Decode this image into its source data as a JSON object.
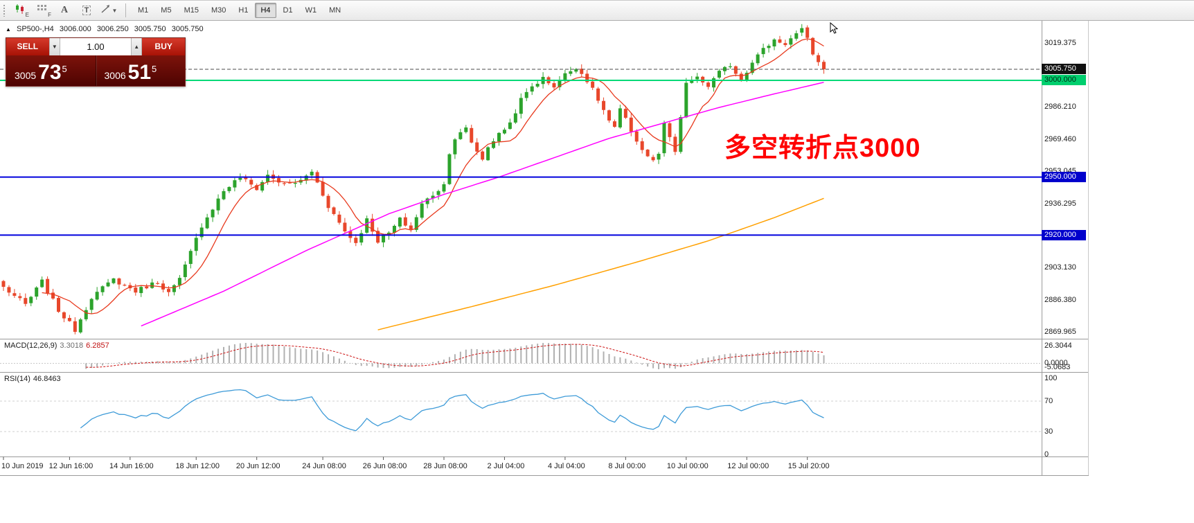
{
  "toolbar": {
    "tools": [
      {
        "id": "chart-objects",
        "label": "E"
      },
      {
        "id": "grid",
        "label": "F"
      },
      {
        "id": "text-label",
        "label": "A"
      },
      {
        "id": "text-box",
        "label": "T"
      },
      {
        "id": "draw-tools",
        "label": "",
        "dropdown": true
      }
    ],
    "timeframes": [
      {
        "label": "M1",
        "active": false
      },
      {
        "label": "M5",
        "active": false
      },
      {
        "label": "M15",
        "active": false
      },
      {
        "label": "M30",
        "active": false
      },
      {
        "label": "H1",
        "active": false
      },
      {
        "label": "H4",
        "active": true
      },
      {
        "label": "D1",
        "active": false
      },
      {
        "label": "W1",
        "active": false
      },
      {
        "label": "MN",
        "active": false
      }
    ]
  },
  "chart_header": {
    "collapse": "▲",
    "symbol_period": "SP500-,H4",
    "open": "3006.000",
    "high": "3006.250",
    "low": "3005.750",
    "close": "3005.750"
  },
  "trade_panel": {
    "sell_label": "SELL",
    "buy_label": "BUY",
    "volume": "1.00",
    "sell_price": {
      "prefix": "3005",
      "main": "73",
      "sup": "5"
    },
    "buy_price": {
      "prefix": "3006",
      "main": "51",
      "sup": "5"
    }
  },
  "annotation": {
    "text": "多空转折点3000",
    "color": "#ff0000"
  },
  "price_axis": {
    "labels": [
      "3019.375",
      "2986.210",
      "2969.460",
      "2953.045",
      "2936.295",
      "2903.130",
      "2886.380",
      "2869.965"
    ],
    "tags": [
      {
        "text": "3005.750",
        "price": 3005.75,
        "bg": "#111111",
        "fg": "#ffffff"
      },
      {
        "text": "3000.000",
        "price": 3000.0,
        "bg": "#00cf6e",
        "fg": "#002b14"
      },
      {
        "text": "2950.000",
        "price": 2950.0,
        "bg": "#0000cc",
        "fg": "#ffffff"
      },
      {
        "text": "2920.000",
        "price": 2920.0,
        "bg": "#0000cc",
        "fg": "#ffffff"
      }
    ]
  },
  "indicators": {
    "macd": {
      "name": "MACD(12,26,9)",
      "value_main": "3.3018",
      "value_signal": "6.2857",
      "axis_top": "26.3044",
      "axis_zero": "0.0000",
      "axis_bottom": "-5.0683"
    },
    "rsi": {
      "name": "RSI(14)",
      "value": "46.8463",
      "axis": [
        "100",
        "70",
        "30",
        "0"
      ],
      "levels": [
        70,
        30
      ]
    }
  },
  "time_axis": [
    {
      "text": "10 Jun 2019",
      "idx": 0
    },
    {
      "text": "12 Jun 16:00",
      "idx": 12
    },
    {
      "text": "14 Jun 16:00",
      "idx": 23
    },
    {
      "text": "18 Jun 12:00",
      "idx": 35
    },
    {
      "text": "20 Jun 12:00",
      "idx": 46
    },
    {
      "text": "24 Jun 08:00",
      "idx": 58
    },
    {
      "text": "26 Jun 08:00",
      "idx": 69
    },
    {
      "text": "28 Jun 08:00",
      "idx": 80
    },
    {
      "text": "2 Jul 04:00",
      "idx": 91
    },
    {
      "text": "4 Jul 04:00",
      "idx": 102
    },
    {
      "text": "8 Jul 00:00",
      "idx": 113
    },
    {
      "text": "10 Jul 00:00",
      "idx": 124
    },
    {
      "text": "12 Jul 00:00",
      "idx": 135
    },
    {
      "text": "15 Jul 20:00",
      "idx": 146
    }
  ],
  "chart_data": {
    "type": "candlestick",
    "symbol": "SP500-",
    "timeframe": "H4",
    "last_ohlc": {
      "open": 3006.0,
      "high": 3006.25,
      "low": 3005.75,
      "close": 3005.75
    },
    "visible_price_range": [
      2866.4,
      3030.8
    ],
    "candle_count": 150,
    "close_anchors": [
      [
        0,
        2893
      ],
      [
        4,
        2884
      ],
      [
        7,
        2896
      ],
      [
        10,
        2881
      ],
      [
        13,
        2871
      ],
      [
        16,
        2888
      ],
      [
        20,
        2897
      ],
      [
        24,
        2891
      ],
      [
        28,
        2896
      ],
      [
        30,
        2890
      ],
      [
        32,
        2897
      ],
      [
        36,
        2925
      ],
      [
        40,
        2943
      ],
      [
        43,
        2950
      ],
      [
        46,
        2944
      ],
      [
        48,
        2951
      ],
      [
        51,
        2946
      ],
      [
        54,
        2948
      ],
      [
        56,
        2953
      ],
      [
        59,
        2935
      ],
      [
        62,
        2922
      ],
      [
        64,
        2916
      ],
      [
        66,
        2928
      ],
      [
        68,
        2917
      ],
      [
        70,
        2921
      ],
      [
        72,
        2928
      ],
      [
        74,
        2923
      ],
      [
        76,
        2936
      ],
      [
        78,
        2941
      ],
      [
        80,
        2946
      ],
      [
        81,
        2963
      ],
      [
        82,
        2970
      ],
      [
        84,
        2975
      ],
      [
        85,
        2968
      ],
      [
        87,
        2959
      ],
      [
        88,
        2966
      ],
      [
        90,
        2972
      ],
      [
        92,
        2978
      ],
      [
        94,
        2990
      ],
      [
        96,
        2997
      ],
      [
        98,
        3001
      ],
      [
        100,
        2997
      ],
      [
        102,
        3003
      ],
      [
        104,
        3007
      ],
      [
        106,
        3000
      ],
      [
        108,
        2990
      ],
      [
        110,
        2979
      ],
      [
        111,
        2975
      ],
      [
        112,
        2985
      ],
      [
        114,
        2974
      ],
      [
        116,
        2964
      ],
      [
        118,
        2958
      ],
      [
        119,
        2962
      ],
      [
        120,
        2977
      ],
      [
        121,
        2970
      ],
      [
        122,
        2963
      ],
      [
        123,
        2980
      ],
      [
        124,
        2999
      ],
      [
        126,
        3001
      ],
      [
        128,
        2997
      ],
      [
        130,
        3004
      ],
      [
        132,
        3008
      ],
      [
        134,
        3000
      ],
      [
        136,
        3010
      ],
      [
        138,
        3016
      ],
      [
        140,
        3021
      ],
      [
        142,
        3019
      ],
      [
        144,
        3024
      ],
      [
        145,
        3026
      ],
      [
        146,
        3021
      ],
      [
        147,
        3014
      ],
      [
        148,
        3009
      ],
      [
        149,
        3005.75
      ]
    ],
    "horizontal_lines": [
      {
        "price": 3000.0,
        "color": "#00d977",
        "style": "solid",
        "width": 2
      },
      {
        "price": 2950.0,
        "color": "#0000dd",
        "style": "solid",
        "width": 2
      },
      {
        "price": 2920.0,
        "color": "#0000dd",
        "style": "solid",
        "width": 2
      },
      {
        "price": 3005.75,
        "color": "#4a4a4a",
        "style": "dash",
        "width": 1
      }
    ],
    "moving_averages": {
      "fast": {
        "color": "#e8391d",
        "period": 8
      },
      "mid": {
        "color": "#ff00ff",
        "anchors": [
          [
            25,
            2873
          ],
          [
            40,
            2891
          ],
          [
            55,
            2912
          ],
          [
            70,
            2931
          ],
          [
            80,
            2941
          ],
          [
            90,
            2950
          ],
          [
            100,
            2960
          ],
          [
            110,
            2970
          ],
          [
            120,
            2978
          ],
          [
            130,
            2986
          ],
          [
            140,
            2993
          ],
          [
            149,
            2999
          ]
        ]
      },
      "slow": {
        "color": "#ffa000",
        "anchors": [
          [
            68,
            2871
          ],
          [
            85,
            2883
          ],
          [
            100,
            2894
          ],
          [
            115,
            2906
          ],
          [
            128,
            2917
          ],
          [
            140,
            2929
          ],
          [
            149,
            2939
          ]
        ]
      }
    },
    "colors": {
      "up": "#2ca32c",
      "down": "#e8472b"
    }
  }
}
